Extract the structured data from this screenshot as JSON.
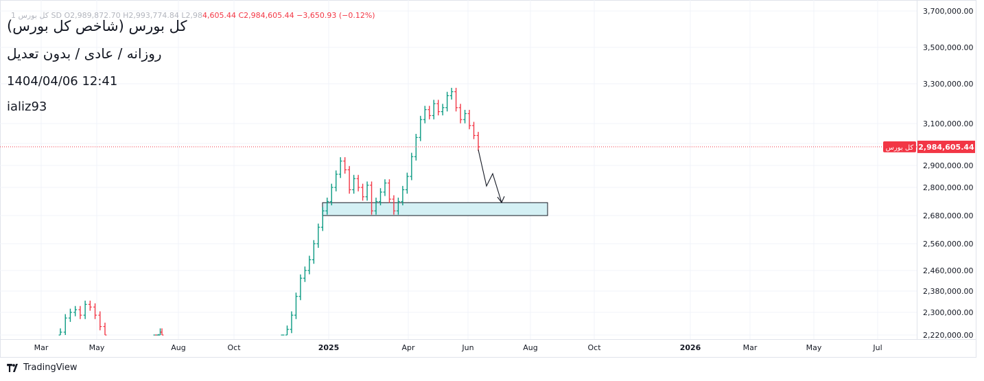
{
  "header": {
    "symbol_name": "کل بورس (شاخص کل بورس)",
    "interval_line": "روزانه / عادی / بدون تعدیل",
    "date_time": "1404/04/06  12:41",
    "author": "ializ93",
    "ohlc_prefix": "1 کل بورس  SD  O2,989,872.70  H2,993,774.84  L2,98",
    "ohlc_values": "4,605.44  C2,984,605.44  −3,650.93 (−0.12%)"
  },
  "footer": {
    "brand": "TradingView",
    "logo_icon": "tradingview-logo-icon"
  },
  "colors": {
    "up": "#089981",
    "down": "#f23645",
    "zone_fill": "#d4f0f4",
    "grid": "#f0f3fa"
  },
  "chart_data": {
    "type": "candlestick",
    "title": "کل بورس (شاخص کل بورس)",
    "subtitle": "روزانه / عادی / بدون تعدیل",
    "y_ticks": [
      2220000,
      2300000,
      2380000,
      2460000,
      2560000,
      2680000,
      2800000,
      2900000,
      3000000,
      3100000,
      3300000,
      3500000,
      3700000
    ],
    "y_tick_labels": [
      "2,220,000.00",
      "2,300,000.00",
      "2,380,000.00",
      "2,460,000.00",
      "2,560,000.00",
      "2,680,000.00",
      "2,800,000.00",
      "2,900,000.00",
      "3,000,000.00",
      "3,100,000.00",
      "3,300,000.00",
      "3,500,000.00",
      "3,700,000.00"
    ],
    "x_tick_labels": [
      "Mar",
      "May",
      "Aug",
      "Oct",
      "2025",
      "Apr",
      "Jun",
      "Aug",
      "Oct",
      "2026",
      "Mar",
      "May",
      "Jul"
    ],
    "x_tick_bold": [
      false,
      false,
      false,
      false,
      true,
      false,
      false,
      false,
      false,
      true,
      false,
      false,
      false
    ],
    "last_price": 2984605.44,
    "last_price_label": "2,984,605.44",
    "last_price_tag": "کل بورس",
    "close_series_approx": [
      2230000,
      2280000,
      2300000,
      2310000,
      2290000,
      2330000,
      2320000,
      2290000,
      2250000,
      2210000,
      2200000,
      2190000,
      2210000,
      2230000,
      2220000,
      2200000,
      2240000,
      2290000,
      2360000,
      2430000,
      2460000,
      2500000,
      2560000,
      2630000,
      2700000,
      2740000,
      2800000,
      2860000,
      2920000,
      2880000,
      2790000,
      2840000,
      2800000,
      2760000,
      2810000,
      2700000,
      2740000,
      2780000,
      2820000,
      2750000,
      2700000,
      2740000,
      2790000,
      2850000,
      2940000,
      3030000,
      3120000,
      3170000,
      3140000,
      3200000,
      3160000,
      3180000,
      3240000,
      3260000,
      3180000,
      3120000,
      3150000,
      3090000,
      3040000,
      2984605
    ],
    "annotations": {
      "support_zone": {
        "from": "2025-01",
        "to": "2025-08",
        "top": 2735000,
        "bottom": 2680000
      },
      "projected_path_end": 2740000
    }
  }
}
